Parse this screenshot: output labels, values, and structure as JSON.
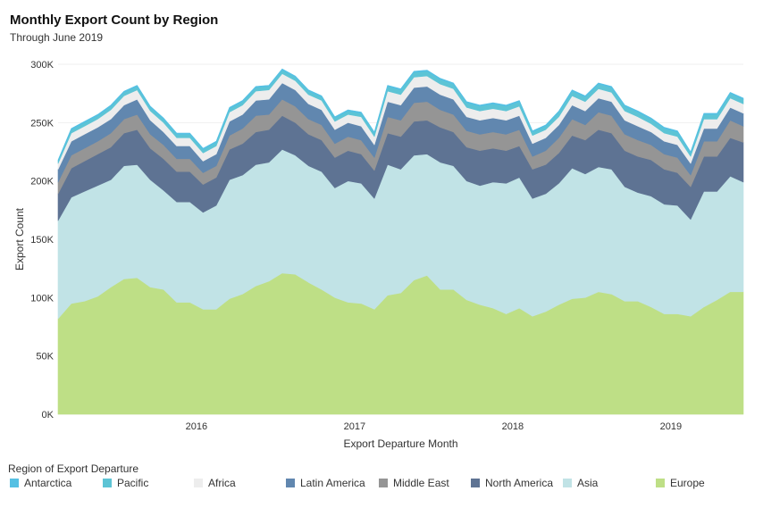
{
  "header": {
    "title": "Monthly Export Count by Region",
    "subtitle": "Through June 2019"
  },
  "legend": {
    "title": "Region of Export Departure"
  },
  "chart_data": {
    "type": "area",
    "stacked": true,
    "title": "Monthly Export Count by Region",
    "subtitle": "Through June 2019",
    "xlabel": "Export Departure Month",
    "ylabel": "Export Count",
    "ylim": [
      0,
      300000
    ],
    "y_ticks": [
      {
        "value": 0,
        "label": "0K"
      },
      {
        "value": 50000,
        "label": "50K"
      },
      {
        "value": 100000,
        "label": "100K"
      },
      {
        "value": 150000,
        "label": "150K"
      },
      {
        "value": 200000,
        "label": "200K"
      },
      {
        "value": 250000,
        "label": "250K"
      },
      {
        "value": 300000,
        "label": "300K"
      }
    ],
    "x_ticks": [
      {
        "index": 10.5,
        "label": "2016"
      },
      {
        "index": 22.5,
        "label": "2017"
      },
      {
        "index": 34.5,
        "label": "2018"
      },
      {
        "index": 46.5,
        "label": "2019"
      }
    ],
    "x_range": [
      0,
      52
    ],
    "x": [
      "2015-02",
      "2015-03",
      "2015-04",
      "2015-05",
      "2015-06",
      "2015-07",
      "2015-08",
      "2015-09",
      "2015-10",
      "2015-11",
      "2015-12",
      "2016-01",
      "2016-02",
      "2016-03",
      "2016-04",
      "2016-05",
      "2016-06",
      "2016-07",
      "2016-08",
      "2016-09",
      "2016-10",
      "2016-11",
      "2016-12",
      "2017-01",
      "2017-02",
      "2017-03",
      "2017-04",
      "2017-05",
      "2017-06",
      "2017-07",
      "2017-08",
      "2017-09",
      "2017-10",
      "2017-11",
      "2017-12",
      "2018-01",
      "2018-02",
      "2018-03",
      "2018-04",
      "2018-05",
      "2018-06",
      "2018-07",
      "2018-08",
      "2018-09",
      "2018-10",
      "2018-11",
      "2018-12",
      "2019-01",
      "2019-02",
      "2019-03",
      "2019-04",
      "2019-05",
      "2019-06"
    ],
    "grid": true,
    "legend_position": "bottom",
    "series": [
      {
        "name": "Europe",
        "color": "#BEDF86",
        "values": [
          82000,
          95000,
          97000,
          101000,
          109000,
          116000,
          117000,
          109000,
          107000,
          96000,
          96000,
          90000,
          90000,
          99000,
          103000,
          110000,
          114000,
          121000,
          120000,
          113000,
          107000,
          100000,
          96000,
          95000,
          90000,
          102000,
          104000,
          115000,
          119000,
          107000,
          107000,
          98000,
          94000,
          91000,
          86000,
          91000,
          84000,
          88000,
          94000,
          99000,
          100000,
          105000,
          103000,
          97000,
          97000,
          92000,
          86000,
          86000,
          84000,
          92000,
          98000,
          105000,
          105000
        ]
      },
      {
        "name": "Asia",
        "color": "#C1E3E6",
        "values": [
          84000,
          91000,
          94000,
          95000,
          92000,
          97000,
          97000,
          92000,
          85000,
          86000,
          86000,
          83000,
          89000,
          102000,
          102000,
          104000,
          102000,
          106000,
          102000,
          100000,
          101000,
          94000,
          104000,
          103000,
          95000,
          112000,
          106000,
          107000,
          104000,
          109000,
          106000,
          102000,
          102000,
          108000,
          112000,
          112000,
          101000,
          101000,
          104000,
          112000,
          106000,
          107000,
          107000,
          98000,
          93000,
          95000,
          94000,
          93000,
          83000,
          99000,
          93000,
          99000,
          94000
        ]
      },
      {
        "name": "North America",
        "color": "#5E7393",
        "values": [
          23000,
          25000,
          26000,
          27000,
          28000,
          28000,
          30000,
          27000,
          27000,
          26000,
          26000,
          24000,
          24000,
          26000,
          27000,
          28000,
          28000,
          29000,
          28000,
          27000,
          27000,
          26000,
          26000,
          25000,
          24000,
          27000,
          28000,
          29000,
          29000,
          30000,
          29000,
          29000,
          30000,
          29000,
          28000,
          27000,
          25000,
          25000,
          26000,
          28000,
          29000,
          32000,
          31000,
          31000,
          31000,
          31000,
          30000,
          28000,
          28000,
          30000,
          30000,
          33000,
          34000
        ]
      },
      {
        "name": "Middle East",
        "color": "#959595",
        "values": [
          10000,
          11000,
          11000,
          11000,
          12000,
          12000,
          13000,
          12000,
          12000,
          11000,
          11000,
          10000,
          10000,
          12000,
          13000,
          14000,
          13000,
          14000,
          14000,
          13000,
          13000,
          12000,
          12000,
          12000,
          11000,
          14000,
          14000,
          16000,
          16000,
          15000,
          15000,
          14000,
          14000,
          14000,
          14000,
          14000,
          11000,
          12000,
          13000,
          14000,
          13000,
          15000,
          15000,
          14000,
          14000,
          13000,
          13000,
          13000,
          10000,
          13000,
          13000,
          15000,
          14000
        ]
      },
      {
        "name": "Latin America",
        "color": "#6187AF",
        "values": [
          11000,
          12000,
          12000,
          12000,
          12000,
          12000,
          13000,
          12000,
          11000,
          11000,
          11000,
          10000,
          10000,
          12000,
          12000,
          13000,
          13000,
          14000,
          14000,
          13000,
          13000,
          12000,
          12000,
          12000,
          11000,
          13000,
          13000,
          13000,
          13000,
          13000,
          13000,
          12000,
          12000,
          12000,
          12000,
          12000,
          11000,
          11000,
          11000,
          12000,
          12000,
          12000,
          12000,
          12000,
          12000,
          11000,
          11000,
          11000,
          10000,
          11000,
          11000,
          11000,
          11000
        ]
      },
      {
        "name": "Africa",
        "color": "#EDEDED",
        "values": [
          5000,
          7000,
          7000,
          7000,
          8000,
          8000,
          8000,
          8000,
          8000,
          7000,
          7000,
          7000,
          7000,
          8000,
          8000,
          8000,
          8000,
          8000,
          8000,
          8000,
          8000,
          7000,
          7000,
          8000,
          7000,
          9000,
          9000,
          9000,
          9000,
          9000,
          9000,
          8000,
          8000,
          8000,
          8000,
          8000,
          7000,
          7000,
          7000,
          8000,
          8000,
          8000,
          8000,
          8000,
          8000,
          7000,
          7000,
          7000,
          6000,
          8000,
          8000,
          8000,
          8000
        ]
      },
      {
        "name": "Pacific",
        "color": "#5DC4D5",
        "values": [
          2000,
          3000,
          3000,
          3000,
          3000,
          3000,
          3000,
          3000,
          3000,
          3000,
          3000,
          3000,
          3000,
          3000,
          3000,
          3000,
          3000,
          3000,
          3000,
          3000,
          3000,
          3000,
          3000,
          3000,
          3000,
          4000,
          4000,
          4000,
          4000,
          4000,
          4000,
          4000,
          4000,
          4000,
          4000,
          4000,
          3000,
          3000,
          4000,
          4000,
          4000,
          4000,
          4000,
          4000,
          4000,
          4000,
          4000,
          4000,
          3000,
          4000,
          4000,
          4000,
          4000
        ]
      },
      {
        "name": "Antarctica",
        "color": "#55C0E3",
        "values": [
          1000,
          1000,
          1000,
          1000,
          1000,
          1000,
          1000,
          1000,
          1000,
          1000,
          1000,
          1000,
          1000,
          1000,
          1000,
          1000,
          1000,
          1000,
          1000,
          1000,
          1000,
          1000,
          1000,
          1000,
          1000,
          1000,
          1000,
          1000,
          1000,
          1000,
          1000,
          1000,
          1000,
          1000,
          1000,
          1000,
          1000,
          1000,
          1000,
          1000,
          1000,
          1000,
          1000,
          1000,
          1000,
          1000,
          1000,
          1000,
          1000,
          1000,
          1000,
          1000,
          1000
        ]
      }
    ],
    "legend_order": [
      "Antarctica",
      "Pacific",
      "Africa",
      "Latin America",
      "Middle East",
      "North America",
      "Asia",
      "Europe"
    ]
  }
}
